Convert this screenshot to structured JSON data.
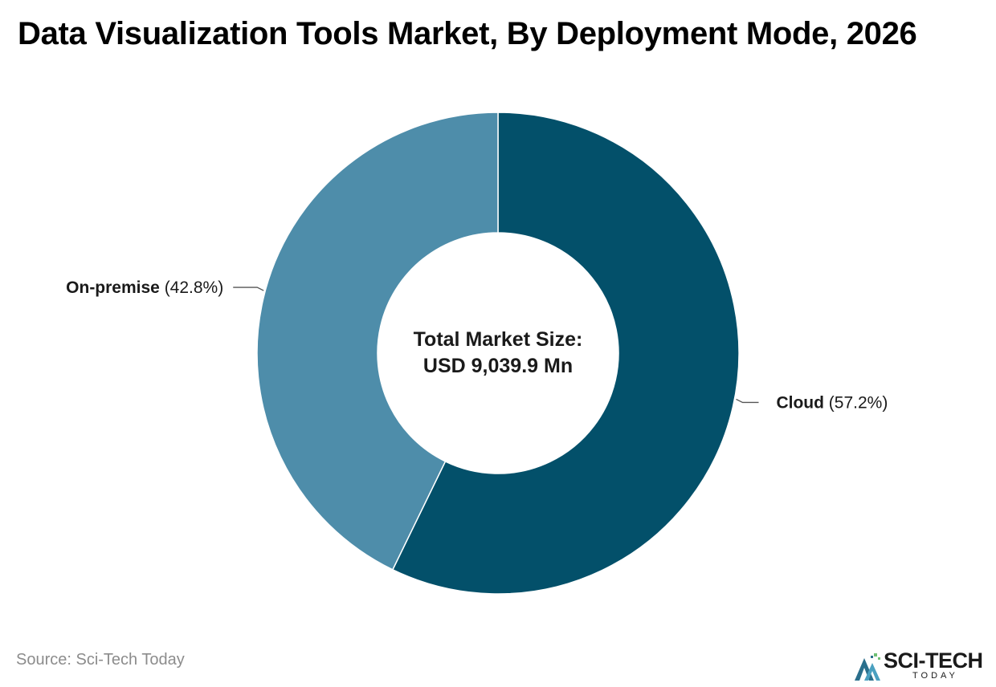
{
  "chart_data": {
    "type": "pie",
    "title": "Data Visualization Tools Market, By Deployment Mode, 2026",
    "center_label": {
      "line1": "Total Market Size:",
      "line2": "USD 9,039.9 Mn"
    },
    "slices": [
      {
        "name": "Cloud",
        "value": 57.2,
        "value_label": "(57.2%)",
        "color": "#03506a"
      },
      {
        "name": "On-premise",
        "value": 42.8,
        "value_label": "(42.8%)",
        "color": "#4e8daa"
      }
    ],
    "unit": "%",
    "donut": true,
    "legend": "none"
  },
  "footer": {
    "source": "Source: Sci-Tech Today"
  },
  "logo": {
    "brand": "SCI-TECH",
    "sub": "TODAY",
    "icon": "sci-tech-logo-mark"
  }
}
